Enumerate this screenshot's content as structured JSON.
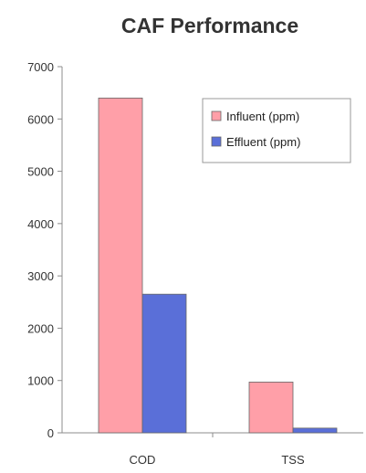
{
  "chart_data": {
    "type": "bar",
    "title": "CAF Performance",
    "categories": [
      "COD",
      "TSS"
    ],
    "series": [
      {
        "name": "Influent (ppm)",
        "values": [
          6400,
          970
        ],
        "color": "#ff9fa8"
      },
      {
        "name": "Effluent (ppm)",
        "values": [
          2650,
          90
        ],
        "color": "#5a6fd8"
      }
    ],
    "ylim": [
      0,
      7000
    ],
    "yticks": [
      0,
      1000,
      2000,
      3000,
      4000,
      5000,
      6000,
      7000
    ],
    "legend_position": "top-right",
    "grid": false,
    "axis_color": "#8c8c8c"
  }
}
